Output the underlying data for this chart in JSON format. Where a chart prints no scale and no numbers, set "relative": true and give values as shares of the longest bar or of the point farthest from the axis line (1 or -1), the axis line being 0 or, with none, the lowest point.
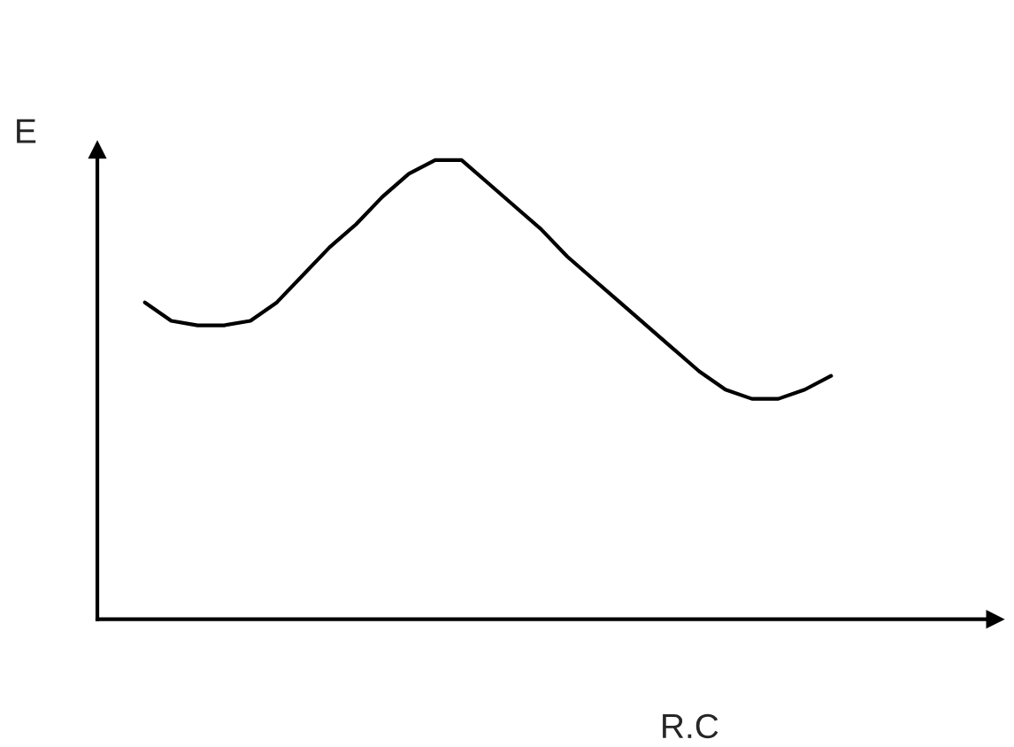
{
  "chart_data": {
    "type": "line",
    "relative": true,
    "xlabel": "R.C",
    "ylabel": "E",
    "categories": [
      null,
      null,
      null,
      null,
      null,
      null,
      null,
      null,
      null,
      null,
      null,
      null,
      null,
      null,
      null,
      null,
      null,
      null,
      null,
      null,
      null,
      null,
      null,
      null,
      null,
      null,
      null
    ],
    "series": [
      {
        "color": "#000000",
        "values": [
          0.69,
          0.65,
          0.64,
          0.64,
          0.65,
          0.69,
          0.75,
          0.81,
          0.86,
          0.92,
          0.97,
          1,
          1,
          0.95,
          0.9,
          0.85,
          0.79,
          0.74,
          0.69,
          0.64,
          0.59,
          0.54,
          0.5,
          0.48,
          0.48,
          0.5,
          0.53
        ]
      }
    ],
    "grid": false,
    "legend": false
  }
}
